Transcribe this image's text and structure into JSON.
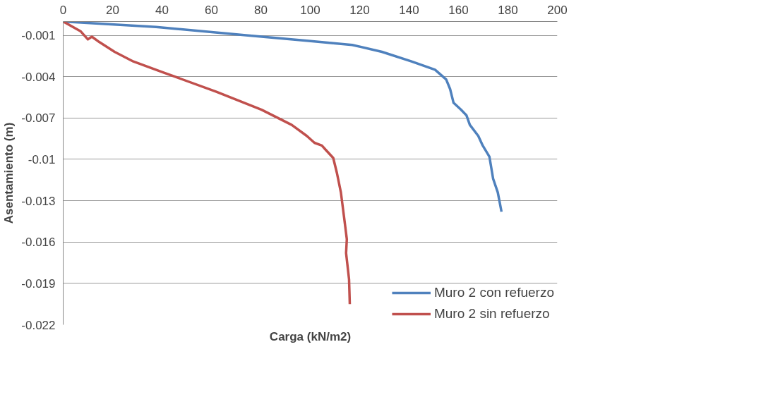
{
  "chart_data": {
    "type": "line",
    "xlabel": "Carga (kN/m2)",
    "ylabel": "Asentamiento (m)",
    "xlim": [
      0,
      200
    ],
    "xticks": [
      0,
      20,
      40,
      60,
      80,
      100,
      120,
      140,
      160,
      180,
      200
    ],
    "ylim": [
      -0.022,
      0
    ],
    "yticks": [
      -0.001,
      -0.004,
      -0.007,
      -0.01,
      -0.013,
      -0.016,
      -0.019,
      -0.022
    ],
    "grid": "y",
    "legend": "bottom right",
    "marker": "none",
    "line_style": "solid",
    "series": [
      {
        "name": "Muro 2 con refuerzo",
        "color": "#4f81bd",
        "x": [
          0,
          37.6,
          74,
          98.6,
          117,
          129,
          141,
          150.5,
          155,
          156.6,
          158,
          161,
          163.2,
          164.6,
          168,
          169.8,
          172.5,
          174,
          175.9,
          177.4
        ],
        "values": [
          0,
          -0.0004,
          -0.001,
          -0.0014,
          -0.0017,
          -0.0022,
          -0.0029,
          -0.0035,
          -0.0042,
          -0.0049,
          -0.0059,
          -0.0064,
          -0.0068,
          -0.0075,
          -0.0083,
          -0.009,
          -0.0098,
          -0.0114,
          -0.0124,
          -0.0138
        ]
      },
      {
        "name": "Muro 2 sin refuerzo",
        "color": "#c0504d",
        "x": [
          0,
          7,
          10,
          11.6,
          14.7,
          20.8,
          28.4,
          40.6,
          62,
          80.3,
          92.5,
          98.6,
          101.7,
          104.7,
          106.2,
          109.3,
          110.8,
          112.4,
          113.9,
          114.8,
          114.5,
          115.7,
          116
        ],
        "values": [
          0,
          -0.0007,
          -0.0013,
          -0.0011,
          -0.0015,
          -0.0022,
          -0.0029,
          -0.0037,
          -0.0051,
          -0.0064,
          -0.0075,
          -0.0083,
          -0.0088,
          -0.009,
          -0.0093,
          -0.0099,
          -0.011,
          -0.0124,
          -0.0145,
          -0.0158,
          -0.0168,
          -0.0187,
          -0.0205
        ]
      }
    ]
  }
}
